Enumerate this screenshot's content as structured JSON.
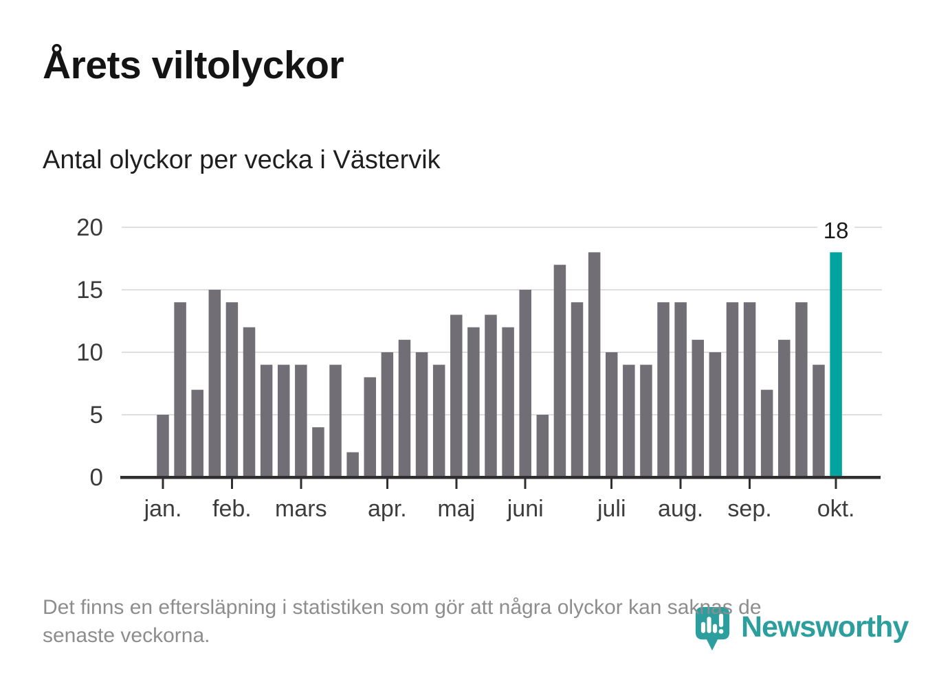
{
  "page": {
    "title": "Årets viltolyckor",
    "subtitle": "Antal olyckor per vecka i Västervik",
    "footnote_line1": "Det finns en eftersläpning i statistiken som gör att några olyckor kan saknas de",
    "footnote_line2": "senaste veckorna.",
    "brand": {
      "name": "Newsworthy",
      "icon": "newsworthy-pin-barchart-icon",
      "color": "#2D9E9E"
    }
  },
  "chart_data": {
    "type": "bar",
    "title": "Årets viltolyckor",
    "subtitle": "Antal olyckor per vecka i Västervik",
    "x_label": "vecka",
    "x": [
      1,
      2,
      3,
      4,
      5,
      6,
      7,
      8,
      9,
      10,
      11,
      12,
      13,
      14,
      15,
      16,
      17,
      18,
      19,
      20,
      21,
      22,
      23,
      24,
      25,
      26,
      27,
      28,
      29,
      30,
      31,
      32,
      33,
      34,
      35,
      36,
      37,
      38,
      39,
      40
    ],
    "values": [
      5,
      14,
      7,
      15,
      14,
      12,
      9,
      9,
      9,
      4,
      9,
      2,
      8,
      10,
      11,
      10,
      9,
      13,
      12,
      13,
      12,
      15,
      5,
      17,
      14,
      18,
      10,
      9,
      9,
      14,
      14,
      11,
      10,
      14,
      14,
      7,
      11,
      14,
      9,
      18
    ],
    "bar_color": "#716E76",
    "highlight": {
      "week": 40,
      "index": 39,
      "value": 18,
      "label": "18",
      "color": "#00A49C"
    },
    "ylim": [
      0,
      20
    ],
    "yticks": [
      0,
      5,
      10,
      15,
      20
    ],
    "grid": "horizontal",
    "legend": "none",
    "x_ticks": [
      {
        "label": "jan.",
        "week": 1
      },
      {
        "label": "feb.",
        "week": 5
      },
      {
        "label": "mars",
        "week": 9
      },
      {
        "label": "apr.",
        "week": 14
      },
      {
        "label": "maj",
        "week": 18
      },
      {
        "label": "juni",
        "week": 22
      },
      {
        "label": "juli",
        "week": 27
      },
      {
        "label": "aug.",
        "week": 31
      },
      {
        "label": "sep.",
        "week": 35
      },
      {
        "label": "okt.",
        "week": 40
      }
    ]
  }
}
